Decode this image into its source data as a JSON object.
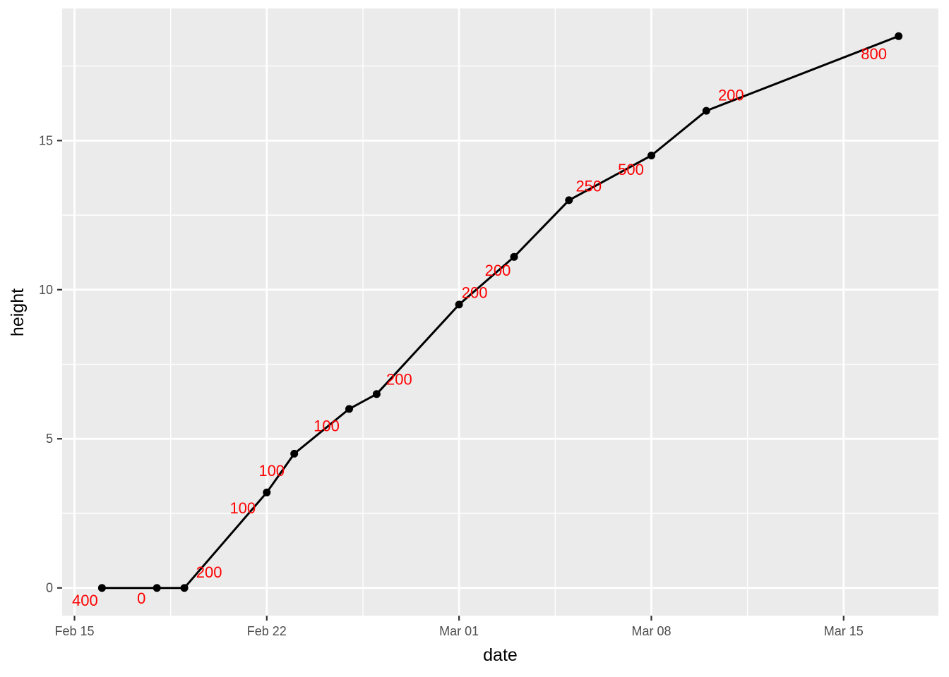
{
  "figure": {
    "background": "#FFFFFF",
    "panel_background": "#EBEBEB",
    "grid_color": "#FFFFFF",
    "tick_mark_color": "#333333",
    "tick_label_color": "#4D4D4D",
    "axis_title_color": "#000000"
  },
  "chart_data": {
    "type": "line",
    "title": "",
    "xlabel": "date",
    "ylabel": "height",
    "legend": "none",
    "grid": "major+minor",
    "line_color": "#000000",
    "point_color": "#000000",
    "point_label_color": "#FF0000",
    "x_axis": {
      "tick_labels": [
        "Feb 15",
        "Feb 22",
        "Mar 01",
        "Mar 08",
        "Mar 15"
      ],
      "tick_days": [
        0,
        7,
        14,
        21,
        28
      ],
      "minor_days": [
        3.5,
        10.5,
        17.5,
        24.5
      ],
      "range_days": [
        -0.45,
        31.45
      ]
    },
    "y_axis": {
      "tick_labels": [
        "0",
        "5",
        "10",
        "15"
      ],
      "tick_values": [
        0,
        5,
        10,
        15
      ],
      "minor_values": [
        2.5,
        7.5,
        12.5,
        17.5
      ],
      "range": [
        -0.93,
        19.43
      ]
    },
    "points": [
      {
        "date": "Feb 16",
        "day": 1,
        "height": 0,
        "label": "400",
        "label_offset": [
          -24,
          18
        ]
      },
      {
        "date": "Feb 18",
        "day": 3,
        "height": 0,
        "label": "0",
        "label_offset": [
          -22,
          15
        ]
      },
      {
        "date": "Feb 19",
        "day": 4,
        "height": 0,
        "label": "200",
        "label_offset": [
          35,
          -22
        ]
      },
      {
        "date": "Feb 22",
        "day": 7,
        "height": 3.2,
        "label": "100",
        "label_offset": [
          -34,
          22
        ]
      },
      {
        "date": "Feb 23",
        "day": 8,
        "height": 4.5,
        "label": "100",
        "label_offset": [
          -32,
          24
        ]
      },
      {
        "date": "Feb 25",
        "day": 10,
        "height": 6.0,
        "label": "100",
        "label_offset": [
          -32,
          24
        ]
      },
      {
        "date": "Feb 26",
        "day": 11,
        "height": 6.5,
        "label": "200",
        "label_offset": [
          32,
          -21
        ]
      },
      {
        "date": "Mar 01",
        "day": 14,
        "height": 9.5,
        "label": "200",
        "label_offset": [
          22,
          -17
        ]
      },
      {
        "date": "Mar 03",
        "day": 16,
        "height": 11.1,
        "label": "200",
        "label_offset": [
          -23,
          19
        ]
      },
      {
        "date": "Mar 05",
        "day": 18,
        "height": 13.0,
        "label": "250",
        "label_offset": [
          28,
          -20
        ]
      },
      {
        "date": "Mar 08",
        "day": 21,
        "height": 14.5,
        "label": "500",
        "label_offset": [
          -29,
          20
        ]
      },
      {
        "date": "Mar 10",
        "day": 23,
        "height": 16.0,
        "label": "200",
        "label_offset": [
          35,
          -22
        ]
      },
      {
        "date": "Mar 17",
        "day": 30,
        "height": 18.5,
        "label": "800",
        "label_offset": [
          -35,
          25
        ]
      }
    ]
  }
}
